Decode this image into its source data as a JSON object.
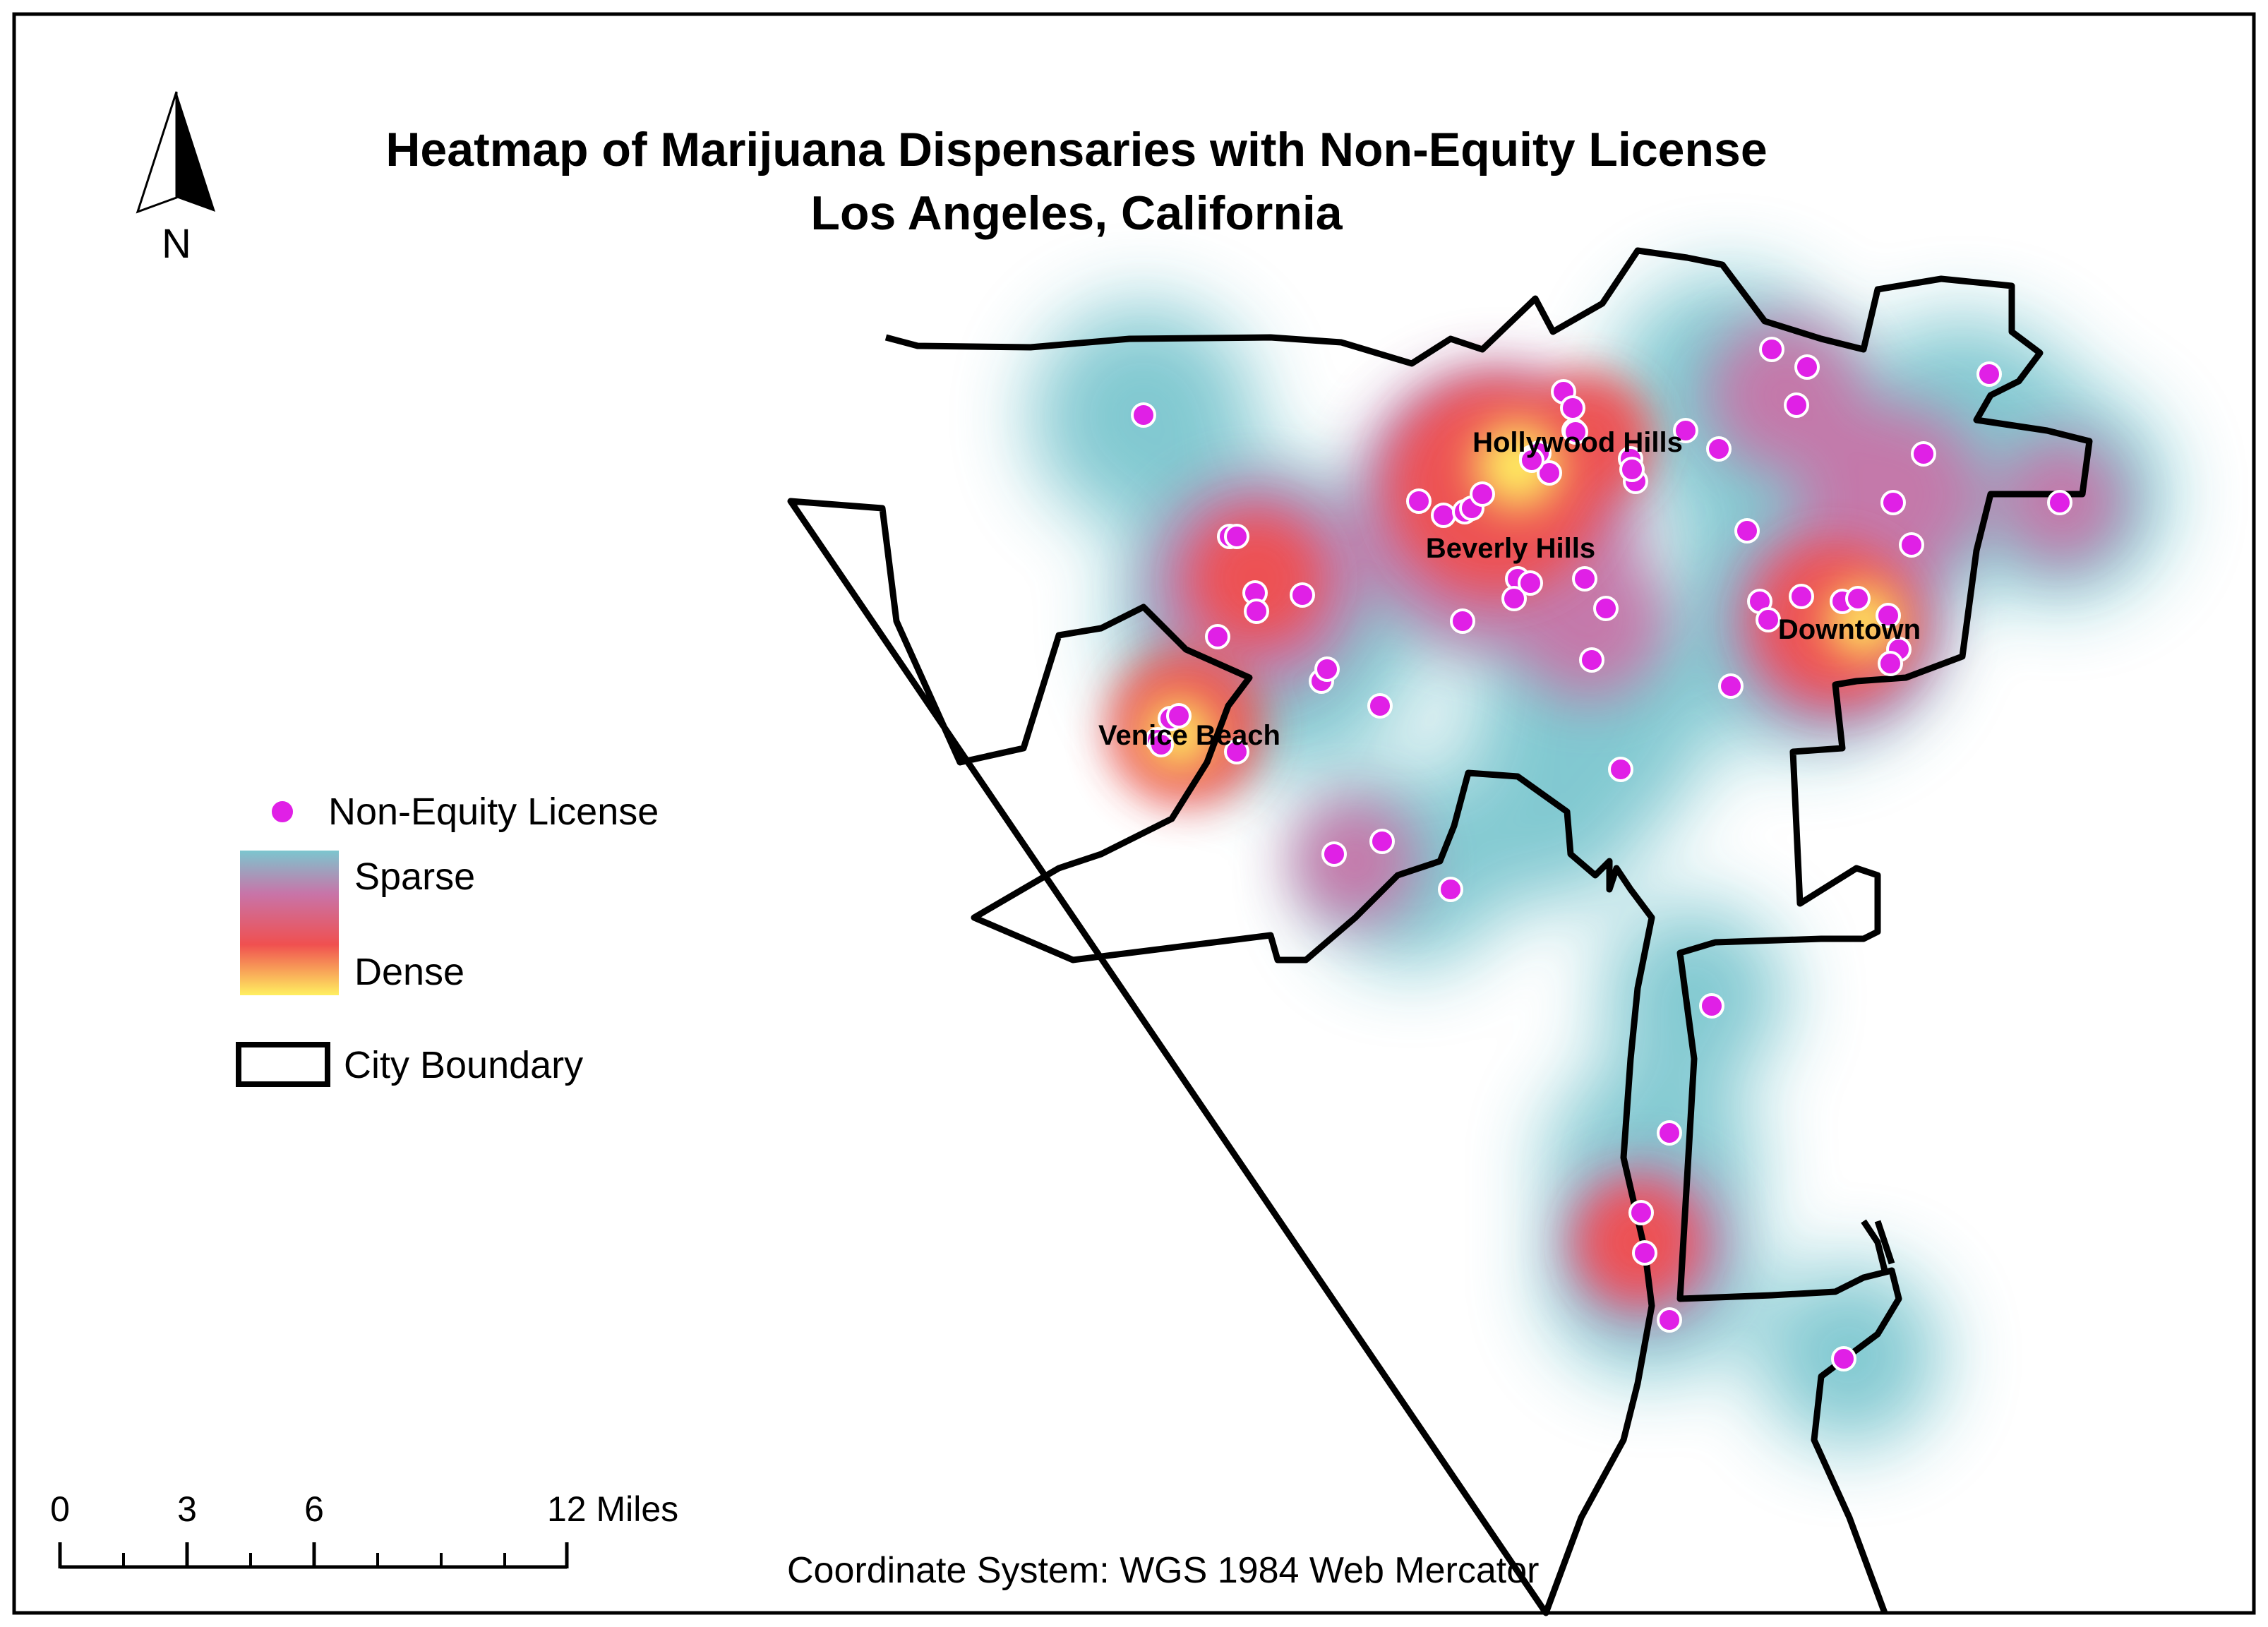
{
  "title": {
    "line1": "Heatmap of Marijuana Dispensaries with Non-Equity License",
    "line2": "Los Angeles, California"
  },
  "north_arrow": {
    "label": "N",
    "icon": "north-arrow-icon"
  },
  "place_labels": {
    "hollywood_hills": "Hollywood Hills",
    "beverly_hills": "Beverly Hills",
    "downtown": "Downtown",
    "venice_beach": "Venice Beach"
  },
  "legend": {
    "points_label": "Non-Equity License",
    "points_color": "#e020e6",
    "heat_sparse": "Sparse",
    "heat_dense": "Dense",
    "heat_colors": [
      "#7cc6cf",
      "#c874a8",
      "#f05050",
      "#fff060"
    ],
    "boundary_label": "City Boundary"
  },
  "scale_bar": {
    "ticks": [
      "0",
      "3",
      "6",
      "12 Miles"
    ]
  },
  "coordinate_system": "Coordinate System: WGS 1984 Web Mercator"
}
